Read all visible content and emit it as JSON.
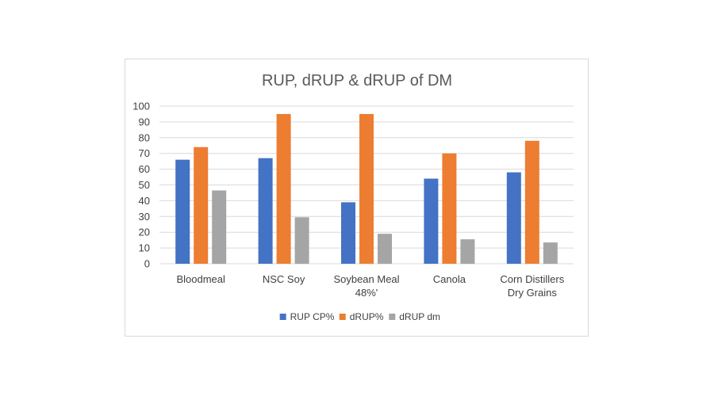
{
  "chart_data": {
    "type": "bar",
    "title": "RUP, dRUP & dRUP of DM",
    "categories": [
      [
        "Bloodmeal"
      ],
      [
        "NSC Soy"
      ],
      [
        "Soybean Meal",
        "48%'"
      ],
      [
        "Canola"
      ],
      [
        "Corn Distillers",
        "Dry Grains"
      ]
    ],
    "series": [
      {
        "name": "RUP CP%",
        "color": "#4472c4",
        "values": [
          66,
          67,
          39,
          54,
          58
        ]
      },
      {
        "name": "dRUP%",
        "color": "#ed7d31",
        "values": [
          74,
          95,
          95,
          70,
          78
        ]
      },
      {
        "name": "dRUP dm",
        "color": "#a5a5a5",
        "values": [
          46.5,
          29.5,
          19,
          15.5,
          13.5
        ]
      }
    ],
    "ylim": [
      0,
      100
    ],
    "yticks": [
      0,
      10,
      20,
      30,
      40,
      50,
      60,
      70,
      80,
      90,
      100
    ],
    "grid": true,
    "legend_position": "bottom"
  }
}
